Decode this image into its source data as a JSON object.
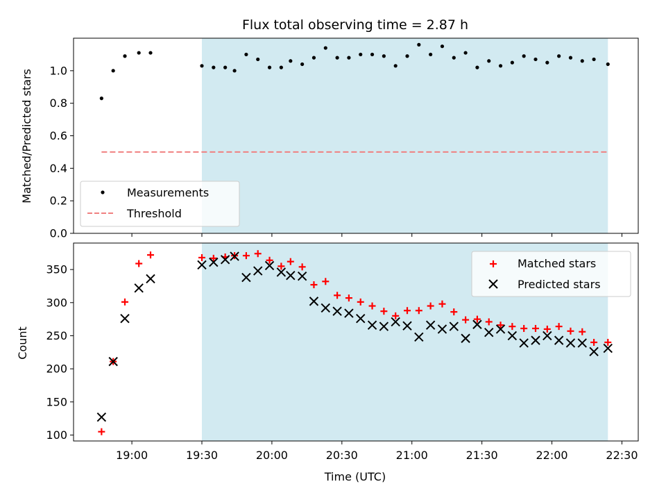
{
  "chart_data": [
    {
      "type": "scatter",
      "title": "Flux total observing time = 2.87 h",
      "xlabel": "",
      "ylabel": "Matched/Predicted stars",
      "xlim": [
        "18:35",
        "22:37"
      ],
      "ylim": [
        0,
        1.2
      ],
      "yticks": [
        0.0,
        0.2,
        0.4,
        0.6,
        0.8,
        1.0
      ],
      "ytick_labels": [
        "0.0",
        "0.2",
        "0.4",
        "0.6",
        "0.8",
        "1.0"
      ],
      "xtick_labels_shown": false,
      "shaded_interval": {
        "start": "19:30",
        "end": "22:24",
        "color": "#add8e6"
      },
      "legend_position": "lower-left",
      "series": [
        {
          "name": "Measurements",
          "marker": "dot",
          "color": "#000000",
          "x": [
            "18:47",
            "18:52",
            "18:57",
            "19:03",
            "19:08",
            "19:30",
            "19:35",
            "19:40",
            "19:44",
            "19:49",
            "19:54",
            "19:59",
            "20:04",
            "20:08",
            "20:13",
            "20:18",
            "20:23",
            "20:28",
            "20:33",
            "20:38",
            "20:43",
            "20:48",
            "20:53",
            "20:58",
            "21:03",
            "21:08",
            "21:13",
            "21:18",
            "21:23",
            "21:28",
            "21:33",
            "21:38",
            "21:43",
            "21:48",
            "21:53",
            "21:58",
            "22:03",
            "22:08",
            "22:13",
            "22:18",
            "22:24"
          ],
          "values": [
            0.83,
            1.0,
            1.09,
            1.11,
            1.11,
            1.03,
            1.02,
            1.02,
            1.0,
            1.1,
            1.07,
            1.02,
            1.02,
            1.06,
            1.04,
            1.08,
            1.14,
            1.08,
            1.08,
            1.1,
            1.1,
            1.09,
            1.03,
            1.09,
            1.16,
            1.1,
            1.15,
            1.08,
            1.11,
            1.02,
            1.06,
            1.03,
            1.05,
            1.09,
            1.07,
            1.05,
            1.09,
            1.08,
            1.06,
            1.07,
            1.04
          ]
        },
        {
          "name": "Threshold",
          "style": "dashed",
          "color": "#f08080",
          "x": [
            "18:47",
            "22:24"
          ],
          "values": [
            0.5,
            0.5
          ]
        }
      ]
    },
    {
      "type": "scatter",
      "title": "",
      "xlabel": "Time (UTC)",
      "ylabel": "Count",
      "xlim": [
        "18:35",
        "22:37"
      ],
      "ylim": [
        91,
        390
      ],
      "yticks": [
        100,
        150,
        200,
        250,
        300,
        350
      ],
      "ytick_labels": [
        "100",
        "150",
        "200",
        "250",
        "300",
        "350"
      ],
      "xticks": [
        "19:00",
        "19:30",
        "20:00",
        "20:30",
        "21:00",
        "21:30",
        "22:00",
        "22:30"
      ],
      "xtick_labels": [
        "19:00",
        "19:30",
        "20:00",
        "20:30",
        "21:00",
        "21:30",
        "22:00",
        "22:30"
      ],
      "shaded_interval": {
        "start": "19:30",
        "end": "22:24",
        "color": "#add8e6"
      },
      "legend_position": "upper-right",
      "series": [
        {
          "name": "Matched stars",
          "marker": "plus",
          "color": "#ff0000",
          "x": [
            "18:47",
            "18:52",
            "18:57",
            "19:03",
            "19:08",
            "19:30",
            "19:35",
            "19:40",
            "19:44",
            "19:49",
            "19:54",
            "19:59",
            "20:04",
            "20:08",
            "20:13",
            "20:18",
            "20:23",
            "20:28",
            "20:33",
            "20:38",
            "20:43",
            "20:48",
            "20:53",
            "20:58",
            "21:03",
            "21:08",
            "21:13",
            "21:18",
            "21:23",
            "21:28",
            "21:33",
            "21:38",
            "21:43",
            "21:48",
            "21:53",
            "21:58",
            "22:03",
            "22:08",
            "22:13",
            "22:18",
            "22:24"
          ],
          "values": [
            105,
            211,
            301,
            359,
            372,
            368,
            367,
            369,
            371,
            371,
            374,
            364,
            355,
            362,
            354,
            327,
            332,
            311,
            307,
            301,
            295,
            287,
            280,
            288,
            288,
            295,
            298,
            286,
            274,
            275,
            271,
            266,
            264,
            261,
            261,
            260,
            264,
            257,
            256,
            240,
            240
          ]
        },
        {
          "name": "Predicted stars",
          "marker": "x",
          "color": "#000000",
          "x": [
            "18:47",
            "18:52",
            "18:57",
            "19:03",
            "19:08",
            "19:30",
            "19:35",
            "19:40",
            "19:44",
            "19:49",
            "19:54",
            "19:59",
            "20:04",
            "20:08",
            "20:13",
            "20:18",
            "20:23",
            "20:28",
            "20:33",
            "20:38",
            "20:43",
            "20:48",
            "20:53",
            "20:58",
            "21:03",
            "21:08",
            "21:13",
            "21:18",
            "21:23",
            "21:28",
            "21:33",
            "21:38",
            "21:43",
            "21:48",
            "21:53",
            "21:58",
            "22:03",
            "22:08",
            "22:13",
            "22:18",
            "22:24"
          ],
          "values": [
            127,
            211,
            276,
            322,
            336,
            357,
            361,
            365,
            370,
            338,
            348,
            356,
            346,
            341,
            340,
            302,
            292,
            287,
            284,
            276,
            266,
            264,
            271,
            265,
            248,
            266,
            260,
            264,
            246,
            267,
            255,
            260,
            250,
            239,
            243,
            250,
            243,
            239,
            239,
            226,
            231
          ]
        }
      ]
    }
  ]
}
